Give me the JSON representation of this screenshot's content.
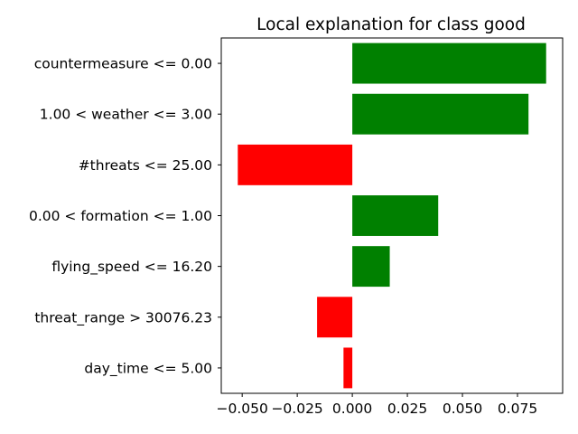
{
  "chart_data": {
    "type": "bar",
    "orientation": "horizontal",
    "title": "Local explanation for class good",
    "xlabel": "",
    "ylabel": "",
    "categories": [
      "countermeasure <= 0.00",
      "1.00 < weather <= 3.00",
      "#threats <= 25.00",
      "0.00 < formation <= 1.00",
      "flying_speed <= 16.20",
      "threat_range > 30076.23",
      "day_time <= 5.00"
    ],
    "values": [
      0.088,
      0.08,
      -0.052,
      0.039,
      0.017,
      -0.016,
      -0.004
    ],
    "xlim": [
      -0.0595,
      0.0955
    ],
    "xticks": [
      -0.05,
      -0.025,
      0.0,
      0.025,
      0.05,
      0.075
    ],
    "xtick_labels": [
      "−0.050",
      "−0.025",
      "0.000",
      "0.025",
      "0.050",
      "0.075"
    ],
    "grid": false,
    "legend": "none",
    "colors": {
      "positive": "#008000",
      "negative": "#ff0000"
    }
  }
}
